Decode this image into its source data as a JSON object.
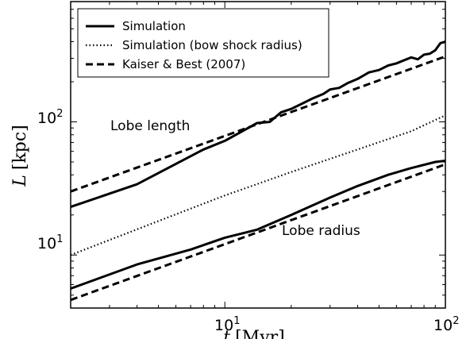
{
  "chart_data": {
    "type": "line",
    "xscale": "log",
    "yscale": "log",
    "xlim": [
      2,
      100
    ],
    "ylim": [
      4,
      800
    ],
    "xlabel_var": "t",
    "xlabel_unit": "[Myr]",
    "ylabel_var": "L",
    "ylabel_unit": "[kpc]",
    "x_ticks": [
      {
        "value": 10,
        "base": "10",
        "exp": "1"
      },
      {
        "value": 100,
        "base": "10",
        "exp": "2"
      }
    ],
    "y_ticks": [
      {
        "value": 10,
        "base": "10",
        "exp": "1"
      },
      {
        "value": 100,
        "base": "10",
        "exp": "2"
      }
    ],
    "legend": {
      "position": "upper-left",
      "entries": [
        {
          "label": "Simulation",
          "style": "solid"
        },
        {
          "label": "Simulation (bow shock radius)",
          "style": "dotted"
        },
        {
          "label": "Kaiser & Best (2007)",
          "style": "dashed"
        }
      ]
    },
    "annotations": [
      {
        "text": "Lobe length",
        "x": 5.2,
        "y": 128
      },
      {
        "text": "Lobe radius",
        "x": 20,
        "y": 15
      }
    ],
    "series": [
      {
        "style": "solid",
        "x": [
          2,
          4,
          8,
          10,
          14,
          16,
          18,
          20,
          22,
          25,
          28,
          30,
          33,
          36,
          40,
          45,
          50,
          55,
          60,
          65,
          70,
          75,
          80,
          85,
          90,
          95,
          100
        ],
        "y": [
          23,
          34,
          62,
          72,
          98,
          100,
          118,
          125,
          135,
          150,
          162,
          175,
          180,
          195,
          210,
          235,
          245,
          265,
          275,
          290,
          305,
          295,
          320,
          325,
          345,
          390,
          400
        ]
      },
      {
        "style": "dashed",
        "x": [
          2,
          100
        ],
        "y": [
          30,
          310
        ]
      },
      {
        "style": "dotted",
        "x": [
          2,
          5,
          10,
          20,
          40,
          70,
          100
        ],
        "y": [
          10,
          18,
          28,
          42,
          62,
          85,
          112
        ]
      },
      {
        "style": "solid",
        "x": [
          2,
          4,
          7,
          10,
          14,
          20,
          30,
          40,
          55,
          70,
          90,
          100
        ],
        "y": [
          5.6,
          8.5,
          11,
          13.5,
          15.5,
          20,
          27,
          33,
          40,
          45,
          50,
          51
        ]
      },
      {
        "style": "dashed",
        "x": [
          2,
          100
        ],
        "y": [
          4.6,
          48
        ]
      }
    ]
  }
}
